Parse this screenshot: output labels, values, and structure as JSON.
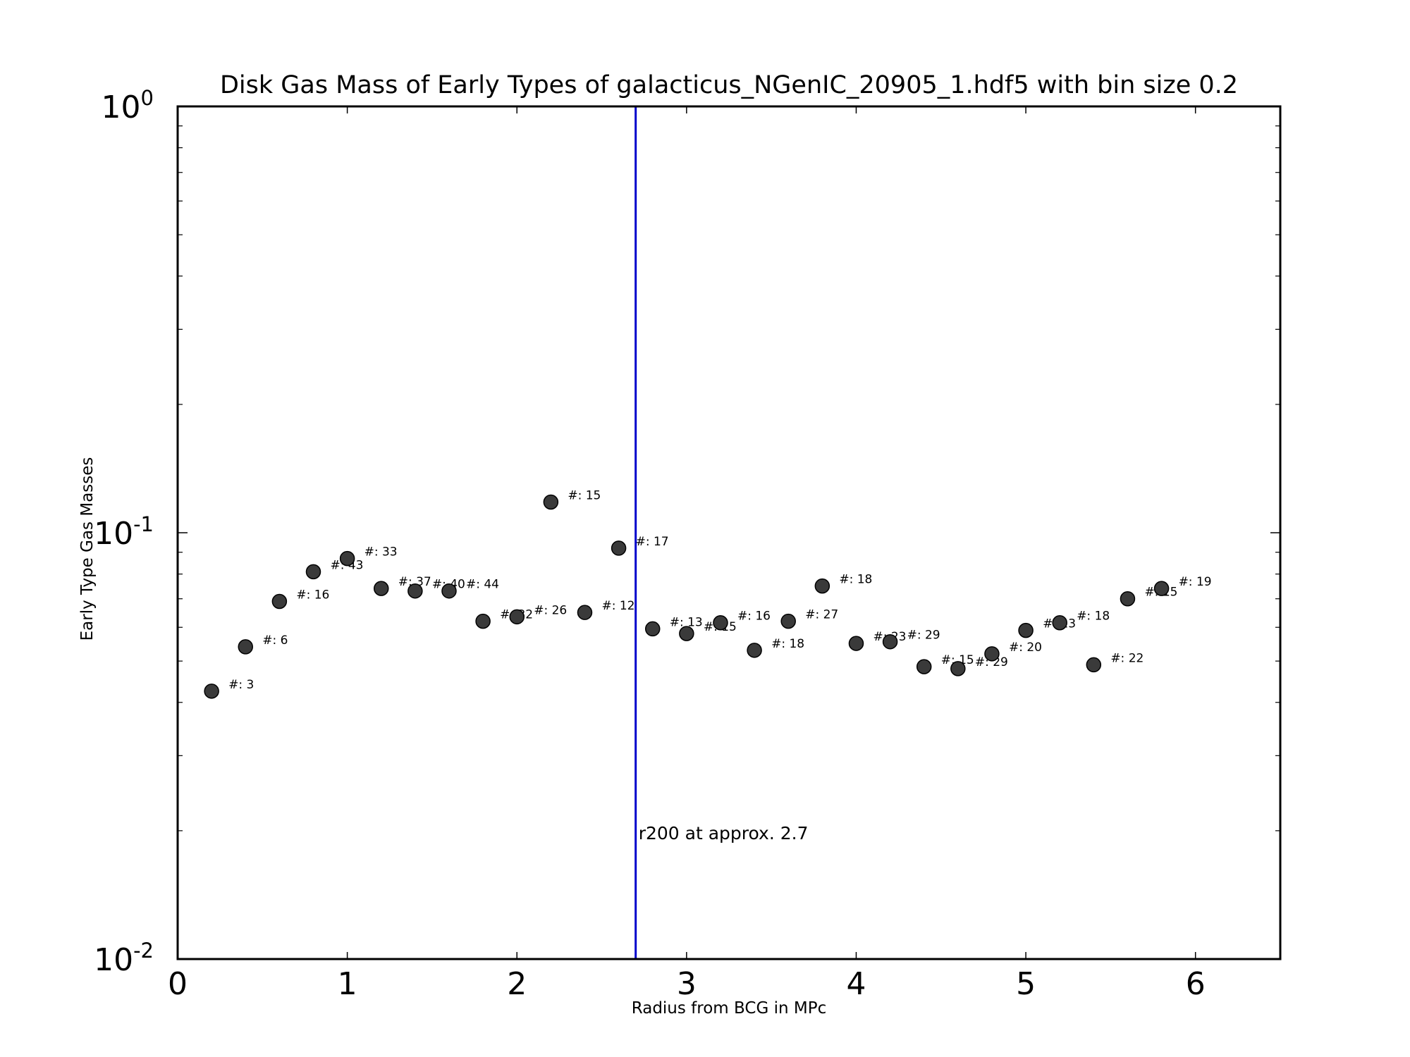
{
  "chart_data": {
    "type": "scatter",
    "title": "Disk Gas Mass of Early Types of galacticus_NGenIC_20905_1.hdf5 with bin size 0.2",
    "xlabel": "Radius from BCG in MPc",
    "ylabel": "Early Type Gas Masses",
    "xlim": [
      0,
      6.5
    ],
    "ylim": [
      0.01,
      1
    ],
    "yscale": "log",
    "x_ticks": [
      {
        "value": 0,
        "label": "0"
      },
      {
        "value": 1,
        "label": "1"
      },
      {
        "value": 2,
        "label": "2"
      },
      {
        "value": 3,
        "label": "3"
      },
      {
        "value": 4,
        "label": "4"
      },
      {
        "value": 5,
        "label": "5"
      },
      {
        "value": 6,
        "label": "6"
      }
    ],
    "y_ticks": [
      {
        "value": 0.01,
        "base": "10",
        "exp": "-2"
      },
      {
        "value": 0.1,
        "base": "10",
        "exp": "-1"
      },
      {
        "value": 1,
        "base": "10",
        "exp": "0"
      }
    ],
    "grid": false,
    "marker_color": "#3a3a3a",
    "points": [
      {
        "x": 0.2,
        "y": 0.0425,
        "label": "#: 3"
      },
      {
        "x": 0.4,
        "y": 0.054,
        "label": "#: 6"
      },
      {
        "x": 0.6,
        "y": 0.069,
        "label": "#: 16"
      },
      {
        "x": 0.8,
        "y": 0.081,
        "label": "#: 43"
      },
      {
        "x": 1.0,
        "y": 0.087,
        "label": "#: 33"
      },
      {
        "x": 1.2,
        "y": 0.074,
        "label": "#: 37"
      },
      {
        "x": 1.4,
        "y": 0.073,
        "label": "#: 40"
      },
      {
        "x": 1.6,
        "y": 0.073,
        "label": "#: 44"
      },
      {
        "x": 1.8,
        "y": 0.062,
        "label": "#: 32"
      },
      {
        "x": 2.0,
        "y": 0.0635,
        "label": "#: 26"
      },
      {
        "x": 2.2,
        "y": 0.118,
        "label": "#: 15"
      },
      {
        "x": 2.4,
        "y": 0.065,
        "label": "#: 12"
      },
      {
        "x": 2.6,
        "y": 0.092,
        "label": "#: 17"
      },
      {
        "x": 2.8,
        "y": 0.0595,
        "label": "#: 13"
      },
      {
        "x": 3.0,
        "y": 0.058,
        "label": "#: 15"
      },
      {
        "x": 3.2,
        "y": 0.0615,
        "label": "#: 16"
      },
      {
        "x": 3.4,
        "y": 0.053,
        "label": "#: 18"
      },
      {
        "x": 3.6,
        "y": 0.062,
        "label": "#: 27"
      },
      {
        "x": 3.8,
        "y": 0.075,
        "label": "#: 18"
      },
      {
        "x": 4.0,
        "y": 0.055,
        "label": "#: 23"
      },
      {
        "x": 4.2,
        "y": 0.0555,
        "label": "#: 29"
      },
      {
        "x": 4.4,
        "y": 0.0485,
        "label": "#: 15"
      },
      {
        "x": 4.6,
        "y": 0.048,
        "label": "#: 29"
      },
      {
        "x": 4.8,
        "y": 0.052,
        "label": "#: 20"
      },
      {
        "x": 5.0,
        "y": 0.059,
        "label": "#: 23"
      },
      {
        "x": 5.2,
        "y": 0.0615,
        "label": "#: 18"
      },
      {
        "x": 5.4,
        "y": 0.049,
        "label": "#: 22"
      },
      {
        "x": 5.6,
        "y": 0.07,
        "label": "#: 15"
      },
      {
        "x": 5.8,
        "y": 0.074,
        "label": "#: 19"
      }
    ],
    "vline": {
      "x": 2.7,
      "color": "#0000cc"
    },
    "annotation": {
      "text": "r200 at approx. 2.7",
      "x": 2.8,
      "y": 0.02
    }
  }
}
